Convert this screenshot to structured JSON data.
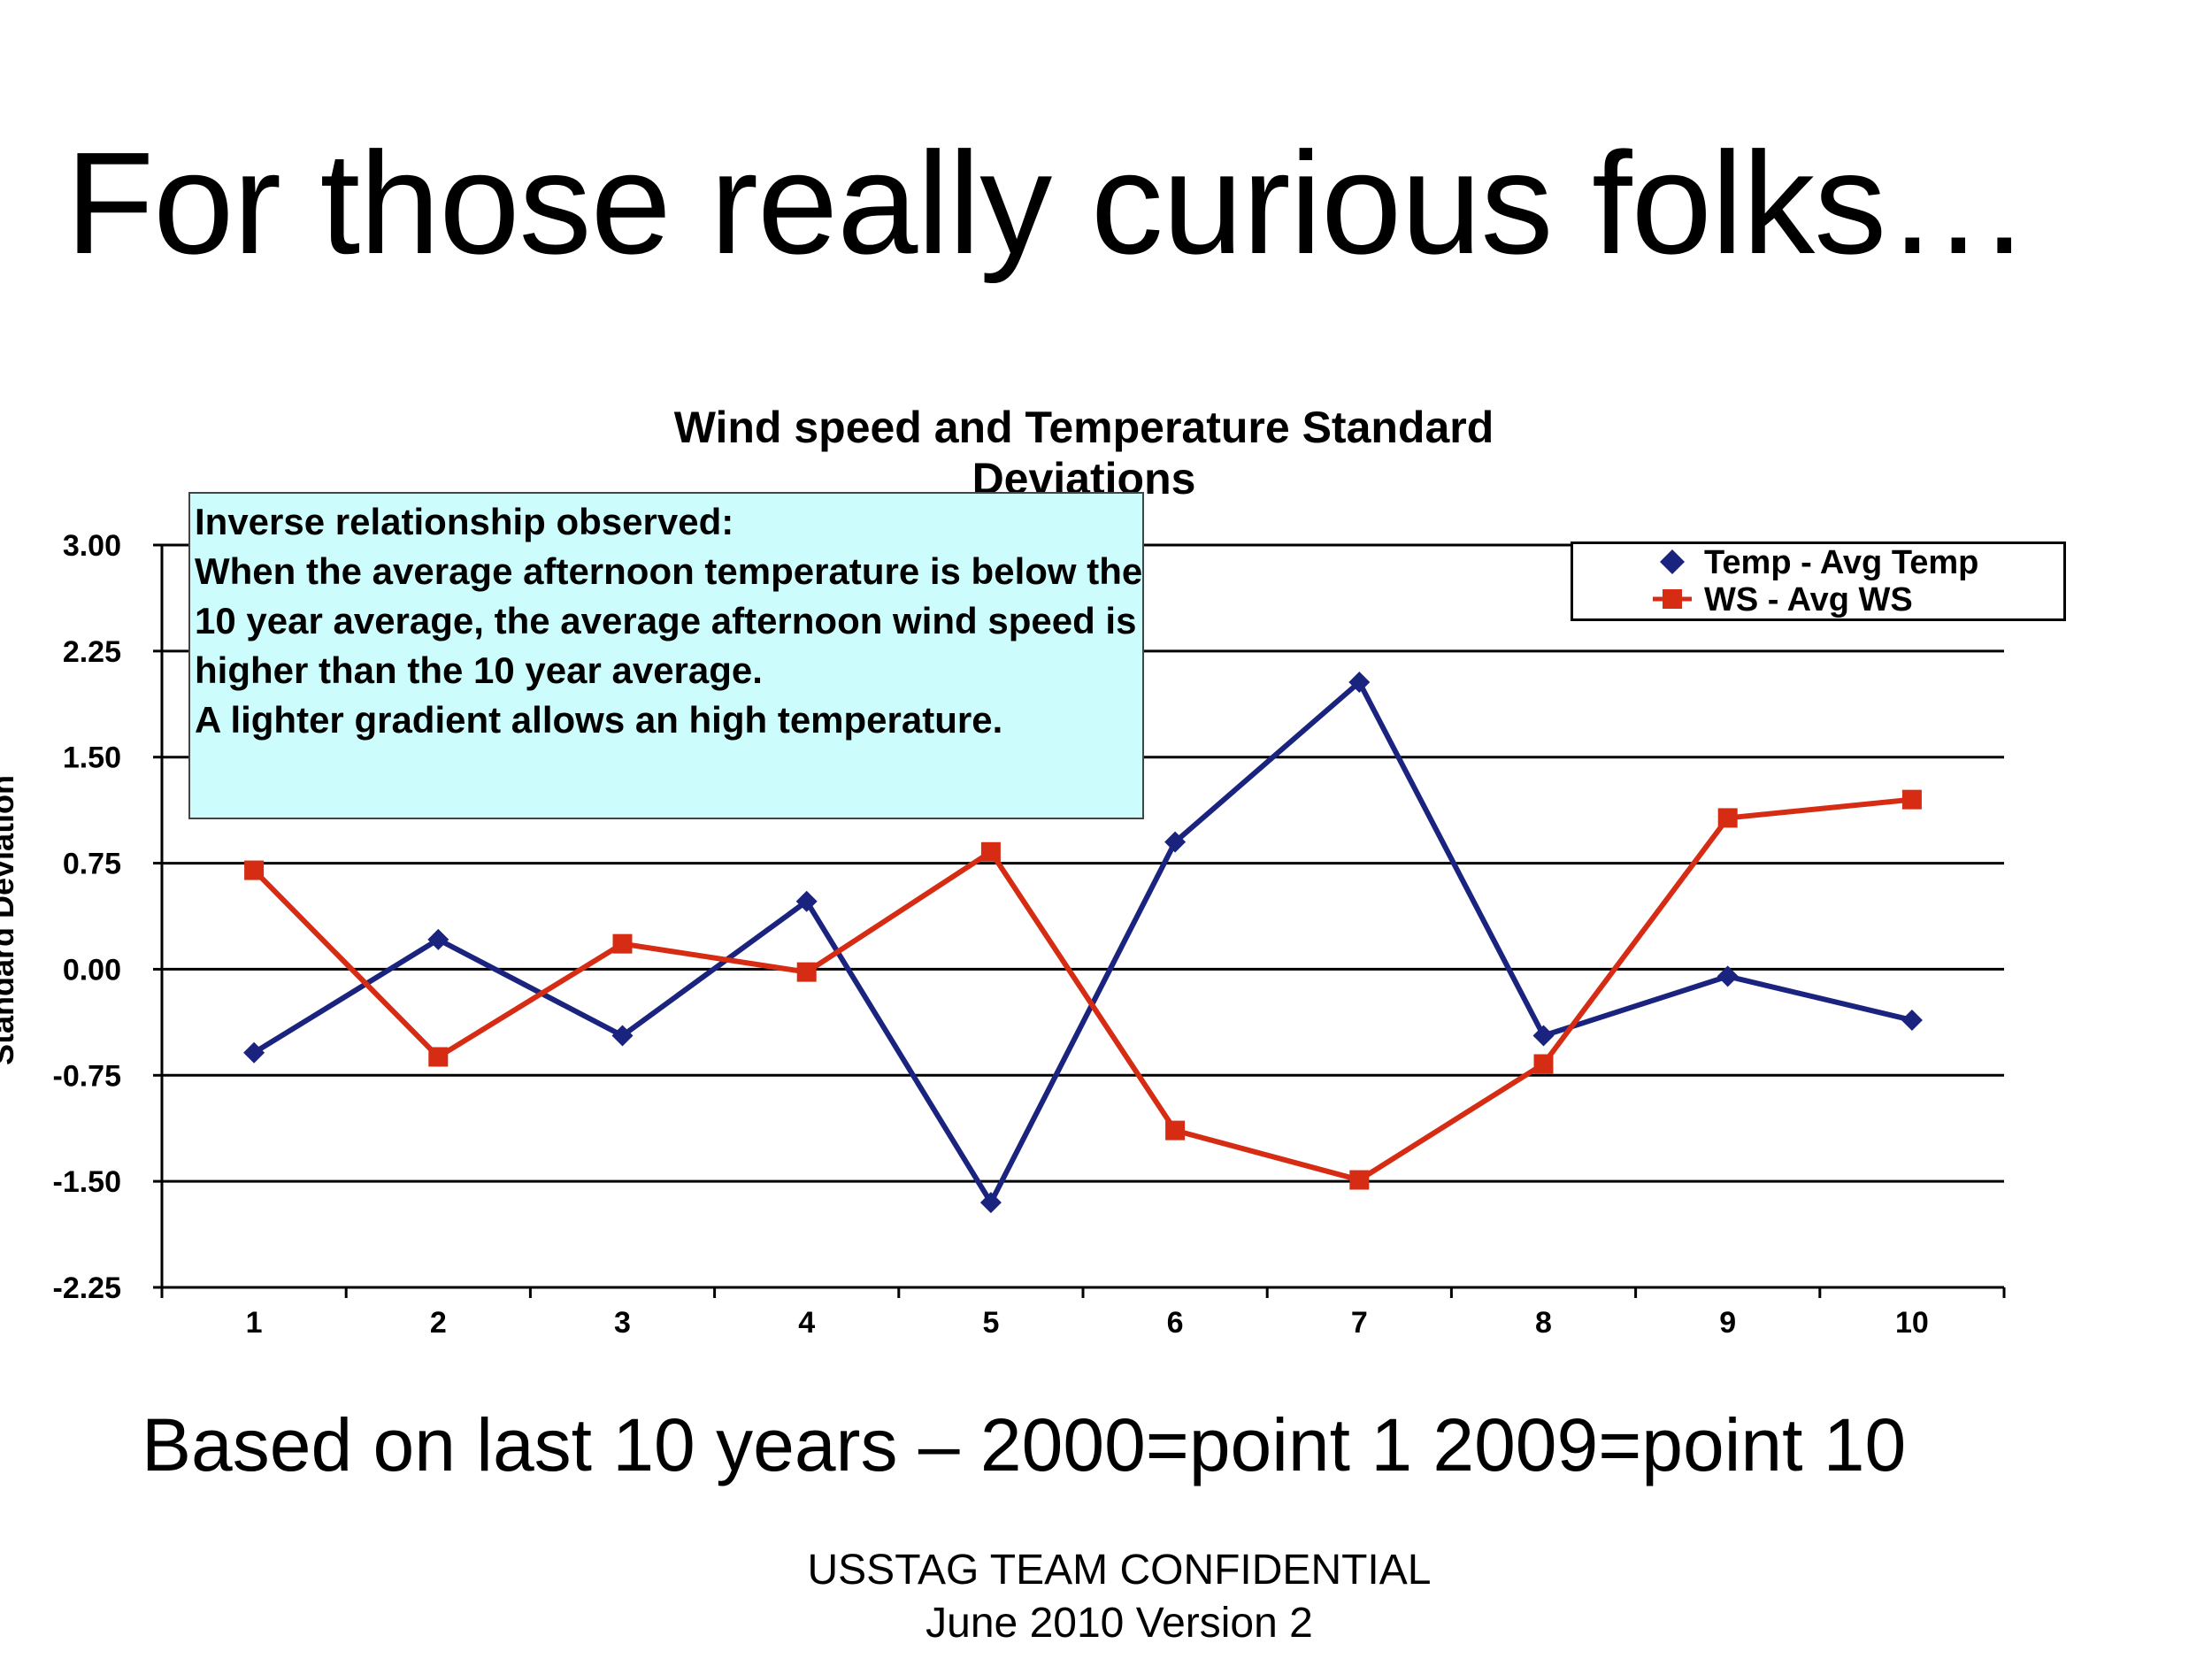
{
  "slide": {
    "title": "For those really curious folks…",
    "footnote": "Based on last 10 years – 2000=point 1 2009=point 10",
    "footer_line1": "USSTAG TEAM CONFIDENTIAL",
    "footer_line2": "June 2010 Version 2"
  },
  "annotation": {
    "lines": [
      "Inverse relationship observed:",
      "When the average afternoon temperature is below the",
      "10 year average, the average afternoon wind speed is",
      "higher than the 10 year average.",
      "A lighter gradient allows an high temperature."
    ],
    "background": "#ccfcfc"
  },
  "chart_data": {
    "type": "line",
    "title_lines": [
      "Wind speed and Temperature Standard",
      "Deviations"
    ],
    "xlabel": "",
    "ylabel": "Standard Deviation",
    "x": [
      1,
      2,
      3,
      4,
      5,
      6,
      7,
      8,
      9,
      10
    ],
    "x_tick_labels": [
      "1",
      "2",
      "3",
      "4",
      "5",
      "6",
      "7",
      "8",
      "9",
      "10"
    ],
    "ylim": [
      -2.25,
      3.0
    ],
    "y_ticks": [
      3.0,
      2.25,
      1.5,
      0.75,
      0.0,
      -0.75,
      -1.5,
      -2.25
    ],
    "y_tick_labels": [
      "3.00",
      "2.25",
      "1.50",
      "0.75",
      "0.00",
      "-0.75",
      "-1.50",
      "-2.25"
    ],
    "grid": true,
    "legend_position": "top-right",
    "series": [
      {
        "name": "Temp - Avg Temp",
        "color": "#1a237e",
        "marker": "diamond",
        "values": [
          -0.59,
          0.21,
          -0.47,
          0.48,
          -1.65,
          0.9,
          2.03,
          -0.47,
          -0.05,
          -0.36
        ]
      },
      {
        "name": "WS - Avg WS",
        "color": "#d62c14",
        "marker": "square",
        "values": [
          0.7,
          -0.62,
          0.18,
          -0.02,
          0.83,
          -1.14,
          -1.49,
          -0.67,
          1.07,
          1.2
        ]
      }
    ]
  }
}
